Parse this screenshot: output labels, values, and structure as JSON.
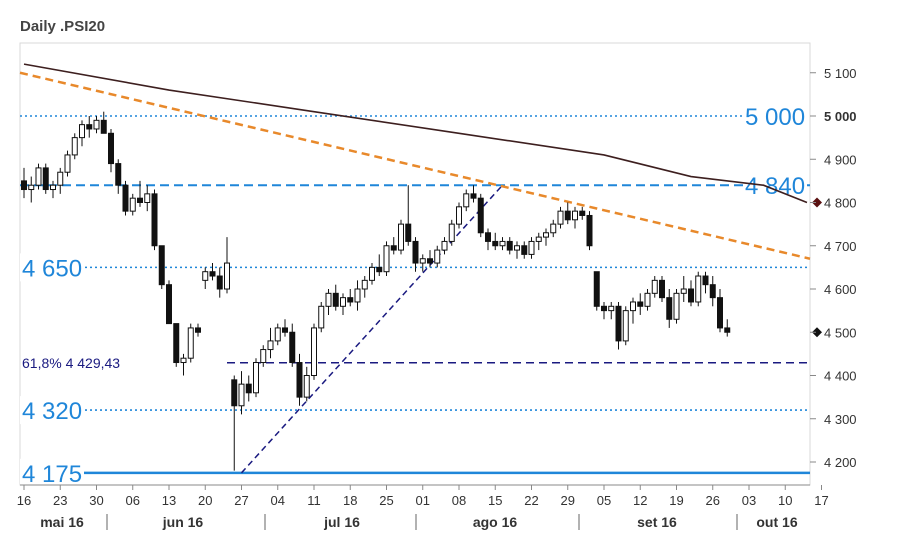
{
  "chart_data": {
    "type": "candlestick",
    "title": "Daily .PSI20",
    "ylim": [
      4150,
      5150
    ],
    "y_ticks": [
      4200,
      4300,
      4400,
      4500,
      4600,
      4700,
      4800,
      4900,
      5000,
      5100
    ],
    "y_tick_labels": [
      "4 200",
      "4 300",
      "4 400",
      "4 500",
      "4 600",
      "4 700",
      "4 800",
      "4 900",
      "5 000",
      "5 100"
    ],
    "x_ticks": [
      "16",
      "23",
      "30",
      "06",
      "13",
      "20",
      "27",
      "04",
      "11",
      "18",
      "25",
      "01",
      "08",
      "15",
      "22",
      "29",
      "05",
      "12",
      "19",
      "26",
      "03",
      "10",
      "17"
    ],
    "months": [
      "mai 16",
      "jun 16",
      "jul 16",
      "ago 16",
      "set 16",
      "out 16"
    ],
    "levels": [
      {
        "label": "5 000",
        "value": 5000,
        "style": "dotted",
        "color": "#1f86d9"
      },
      {
        "label": "4 840",
        "value": 4840,
        "style": "dashed",
        "color": "#1f86d9"
      },
      {
        "label": "4 650",
        "value": 4650,
        "style": "dotted",
        "color": "#1f86d9"
      },
      {
        "label": "4 320",
        "value": 4320,
        "style": "dotted",
        "color": "#1f86d9"
      },
      {
        "label": "4 175",
        "value": 4175,
        "style": "solid",
        "color": "#1f86d9"
      }
    ],
    "fib_label": "61,8%  4 429,43",
    "fib_value": 4429.43,
    "markers": [
      {
        "value": 4800,
        "color": "#5a1010"
      },
      {
        "value": 4500,
        "color": "#111111"
      }
    ],
    "moving_average": [
      [
        0,
        5120
      ],
      [
        20,
        5060
      ],
      [
        40,
        5010
      ],
      [
        60,
        4960
      ],
      [
        80,
        4910
      ],
      [
        92,
        4860
      ],
      [
        102,
        4840
      ],
      [
        108,
        4800
      ]
    ],
    "resistance_line": [
      [
        0,
        5100
      ],
      [
        109,
        4670
      ]
    ],
    "support_line": [
      [
        30,
        4175
      ],
      [
        66,
        4840
      ]
    ],
    "candles": [
      [
        4850,
        4880,
        4810,
        4830
      ],
      [
        4830,
        4860,
        4800,
        4840
      ],
      [
        4840,
        4890,
        4830,
        4880
      ],
      [
        4880,
        4890,
        4820,
        4830
      ],
      [
        4830,
        4850,
        4810,
        4840
      ],
      [
        4840,
        4880,
        4820,
        4870
      ],
      [
        4870,
        4920,
        4860,
        4910
      ],
      [
        4910,
        4960,
        4900,
        4950
      ],
      [
        4950,
        4990,
        4930,
        4980
      ],
      [
        4980,
        5000,
        4950,
        4970
      ],
      [
        4970,
        5000,
        4960,
        4990
      ],
      [
        4990,
        5010,
        4960,
        4960
      ],
      [
        4960,
        4970,
        4870,
        4890
      ],
      [
        4890,
        4900,
        4820,
        4840
      ],
      [
        4840,
        4850,
        4770,
        4780
      ],
      [
        4780,
        4820,
        4770,
        4810
      ],
      [
        4810,
        4850,
        4790,
        4800
      ],
      [
        4800,
        4840,
        4780,
        4820
      ],
      [
        4820,
        4830,
        4690,
        4700
      ],
      [
        4700,
        4700,
        4600,
        4610
      ],
      [
        4610,
        4620,
        4520,
        4520
      ],
      [
        4520,
        4520,
        4420,
        4430
      ],
      [
        4430,
        4450,
        4400,
        4440
      ],
      [
        4440,
        4520,
        4430,
        4510
      ],
      [
        4510,
        4520,
        4490,
        4500
      ],
      [
        4620,
        4650,
        4600,
        4640
      ],
      [
        4640,
        4660,
        4620,
        4630
      ],
      [
        4630,
        4650,
        4580,
        4600
      ],
      [
        4600,
        4720,
        4590,
        4660
      ],
      [
        4390,
        4400,
        4180,
        4330
      ],
      [
        4330,
        4410,
        4310,
        4380
      ],
      [
        4380,
        4400,
        4340,
        4360
      ],
      [
        4360,
        4440,
        4350,
        4430
      ],
      [
        4430,
        4470,
        4420,
        4460
      ],
      [
        4460,
        4510,
        4440,
        4480
      ],
      [
        4480,
        4520,
        4470,
        4510
      ],
      [
        4510,
        4530,
        4490,
        4500
      ],
      [
        4500,
        4520,
        4420,
        4430
      ],
      [
        4430,
        4450,
        4330,
        4350
      ],
      [
        4350,
        4420,
        4340,
        4400
      ],
      [
        4400,
        4520,
        4390,
        4510
      ],
      [
        4510,
        4570,
        4500,
        4560
      ],
      [
        4560,
        4600,
        4540,
        4590
      ],
      [
        4590,
        4610,
        4550,
        4560
      ],
      [
        4560,
        4590,
        4540,
        4580
      ],
      [
        4580,
        4600,
        4560,
        4570
      ],
      [
        4570,
        4620,
        4550,
        4600
      ],
      [
        4600,
        4630,
        4580,
        4620
      ],
      [
        4620,
        4660,
        4610,
        4650
      ],
      [
        4650,
        4680,
        4630,
        4640
      ],
      [
        4640,
        4710,
        4630,
        4700
      ],
      [
        4700,
        4720,
        4680,
        4690
      ],
      [
        4690,
        4760,
        4680,
        4750
      ],
      [
        4750,
        4840,
        4700,
        4710
      ],
      [
        4710,
        4720,
        4640,
        4660
      ],
      [
        4660,
        4680,
        4640,
        4670
      ],
      [
        4670,
        4690,
        4650,
        4660
      ],
      [
        4660,
        4700,
        4650,
        4690
      ],
      [
        4690,
        4720,
        4680,
        4710
      ],
      [
        4710,
        4760,
        4700,
        4750
      ],
      [
        4750,
        4800,
        4740,
        4790
      ],
      [
        4790,
        4830,
        4780,
        4820
      ],
      [
        4820,
        4840,
        4800,
        4810
      ],
      [
        4810,
        4820,
        4720,
        4730
      ],
      [
        4730,
        4740,
        4690,
        4710
      ],
      [
        4710,
        4730,
        4690,
        4700
      ],
      [
        4700,
        4720,
        4690,
        4710
      ],
      [
        4710,
        4720,
        4680,
        4690
      ],
      [
        4690,
        4710,
        4670,
        4700
      ],
      [
        4700,
        4710,
        4670,
        4680
      ],
      [
        4680,
        4720,
        4670,
        4710
      ],
      [
        4710,
        4730,
        4690,
        4720
      ],
      [
        4720,
        4740,
        4700,
        4730
      ],
      [
        4730,
        4760,
        4720,
        4750
      ],
      [
        4750,
        4790,
        4740,
        4780
      ],
      [
        4780,
        4800,
        4750,
        4760
      ],
      [
        4760,
        4790,
        4740,
        4780
      ],
      [
        4780,
        4790,
        4760,
        4770
      ],
      [
        4770,
        4780,
        4690,
        4700
      ],
      [
        4640,
        4640,
        4550,
        4560
      ],
      [
        4560,
        4570,
        4530,
        4550
      ],
      [
        4550,
        4570,
        4530,
        4560
      ],
      [
        4560,
        4570,
        4460,
        4480
      ],
      [
        4480,
        4560,
        4470,
        4550
      ],
      [
        4550,
        4580,
        4520,
        4570
      ],
      [
        4570,
        4590,
        4540,
        4560
      ],
      [
        4560,
        4600,
        4550,
        4590
      ],
      [
        4590,
        4630,
        4580,
        4620
      ],
      [
        4620,
        4630,
        4570,
        4580
      ],
      [
        4580,
        4600,
        4510,
        4530
      ],
      [
        4530,
        4600,
        4520,
        4590
      ],
      [
        4590,
        4630,
        4570,
        4600
      ],
      [
        4600,
        4620,
        4560,
        4570
      ],
      [
        4570,
        4640,
        4560,
        4630
      ],
      [
        4630,
        4640,
        4590,
        4610
      ],
      [
        4610,
        4630,
        4560,
        4580
      ],
      [
        4580,
        4600,
        4500,
        4510
      ],
      [
        4510,
        4530,
        4490,
        4500
      ]
    ]
  }
}
